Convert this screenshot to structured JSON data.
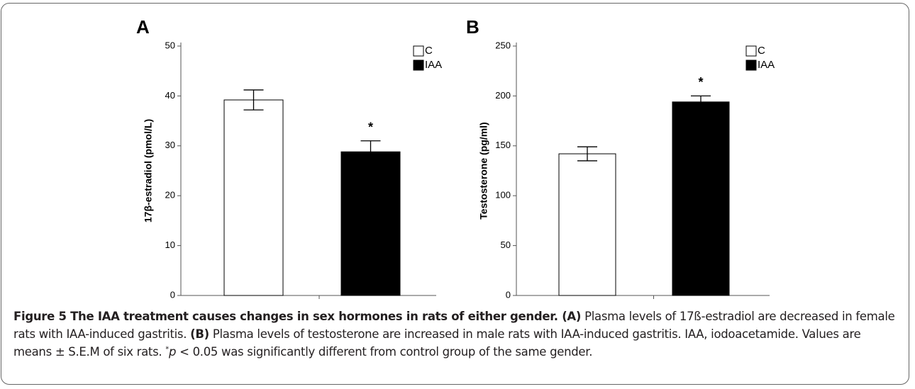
{
  "chart_data": [
    {
      "type": "bar",
      "panel": "A",
      "ylabel": "17β-estradiol (pmol/L)",
      "series": [
        {
          "name": "C",
          "color": "#ffffff",
          "values": [
            39.2
          ],
          "errors": [
            2.0
          ]
        },
        {
          "name": "IAA",
          "color": "#000000",
          "values": [
            28.8
          ],
          "errors": [
            2.2
          ]
        }
      ],
      "annotations": [
        {
          "text": "*",
          "series": 1
        }
      ],
      "ylim": [
        0,
        50
      ],
      "yticks": [
        0,
        10,
        20,
        30,
        40,
        50
      ],
      "legend": "upper right"
    },
    {
      "type": "bar",
      "panel": "B",
      "ylabel": "Testosterone (pg/ml)",
      "series": [
        {
          "name": "C",
          "color": "#ffffff",
          "values": [
            142
          ],
          "errors": [
            7
          ]
        },
        {
          "name": "IAA",
          "color": "#000000",
          "values": [
            194
          ],
          "errors": [
            6
          ]
        }
      ],
      "annotations": [
        {
          "text": "*",
          "series": 1
        }
      ],
      "ylim": [
        0,
        250
      ],
      "yticks": [
        0,
        50,
        100,
        150,
        200,
        250
      ],
      "legend": "upper right"
    }
  ],
  "caption": {
    "segments": [
      {
        "text": "Figure 5 The IAA treatment causes changes in sex hormones in rats of either gender. ",
        "style": "bold"
      },
      {
        "text": "(A)",
        "style": "bold"
      },
      {
        "text": " Plasma levels of 17ß-estradiol are decreased in female rats with IAA-induced gastritis. ",
        "style": "normal"
      },
      {
        "text": "(B)",
        "style": "bold"
      },
      {
        "text": " Plasma levels of testosterone are increased in male rats with IAA-induced gastritis. IAA, iodoacetamide. Values are means ± S.E.M of six rats. ",
        "style": "normal"
      },
      {
        "text": "*",
        "style": "sup"
      },
      {
        "text": "p",
        "style": "italic"
      },
      {
        "text": " < 0.05 was significantly different from control group of the same gender.",
        "style": "normal"
      }
    ]
  }
}
